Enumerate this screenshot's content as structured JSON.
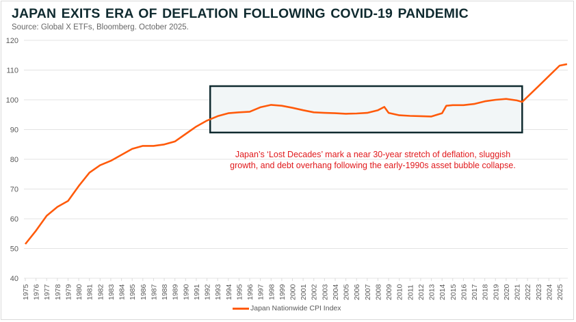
{
  "title": "JAPAN EXITS ERA OF DEFLATION FOLLOWING COVID-19 PANDEMIC",
  "subtitle": "Source: Global X ETFs, Bloomberg. October 2025.",
  "colors": {
    "line": "#ff5a0a",
    "box_border": "#0f2a2f",
    "box_fill": "#f2f6f7",
    "annotation": "#e0181b",
    "grid": "#e3e3e3"
  },
  "chart_data": {
    "type": "line",
    "title": "JAPAN EXITS ERA OF DEFLATION FOLLOWING COVID-19 PANDEMIC",
    "xlabel": "",
    "ylabel": "",
    "ylim": [
      40,
      120
    ],
    "yticks": [
      "40",
      "50",
      "60",
      "70",
      "80",
      "90",
      "100",
      "110",
      "120"
    ],
    "xticks": [
      "1975",
      "1976",
      "1977",
      "1978",
      "1979",
      "1980",
      "1981",
      "1982",
      "1983",
      "1984",
      "1985",
      "1986",
      "1987",
      "1988",
      "1989",
      "1990",
      "1991",
      "1992",
      "1993",
      "1994",
      "1995",
      "1996",
      "1997",
      "1998",
      "1999",
      "2000",
      "2001",
      "2002",
      "2003",
      "2004",
      "2005",
      "2006",
      "2007",
      "2008",
      "2009",
      "2010",
      "2011",
      "2012",
      "2013",
      "2014",
      "2015",
      "2016",
      "2017",
      "2018",
      "2019",
      "2020",
      "2021",
      "2022",
      "2023",
      "2024",
      "2025"
    ],
    "grid": "horizontal",
    "legend_position": "bottom",
    "series": [
      {
        "name": "Japan Nationwide CPI Index",
        "x": [
          1975,
          1976,
          1977,
          1978,
          1979,
          1980,
          1981,
          1982,
          1983,
          1984,
          1985,
          1986,
          1987,
          1988,
          1989,
          1990,
          1991,
          1992,
          1993,
          1994,
          1995,
          1996,
          1997,
          1998,
          1999,
          2000,
          2001,
          2002,
          2003,
          2004,
          2005,
          2006,
          2007,
          2008,
          2008.6,
          2009,
          2010,
          2011,
          2012,
          2013,
          2014,
          2014.4,
          2015,
          2016,
          2017,
          2018,
          2019,
          2020,
          2021,
          2021.5,
          2022,
          2023,
          2024,
          2025,
          2025.7
        ],
        "values": [
          51.5,
          56,
          61,
          64,
          66,
          71,
          75.5,
          78,
          79.5,
          81.5,
          83.5,
          84.5,
          84.5,
          85,
          86,
          88.5,
          91,
          93,
          94.5,
          95.5,
          95.8,
          96,
          97.5,
          98.3,
          98,
          97.3,
          96.5,
          95.8,
          95.6,
          95.5,
          95.3,
          95.4,
          95.6,
          96.5,
          97.6,
          95.6,
          94.8,
          94.6,
          94.5,
          94.4,
          95.5,
          98,
          98.2,
          98.2,
          98.6,
          99.5,
          100,
          100.3,
          99.8,
          99.3,
          101,
          104.5,
          108,
          111.5,
          112
        ]
      }
    ],
    "annotations": [
      {
        "type": "box",
        "x_range": [
          1992.3,
          2021.5
        ],
        "y_range": [
          89,
          104.6
        ],
        "text": "Japan’s ‘Lost Decades’ mark a near 30-year stretch of deflation, sluggish growth, and debt overhang following the early-1990s asset bubble collapse."
      }
    ]
  }
}
